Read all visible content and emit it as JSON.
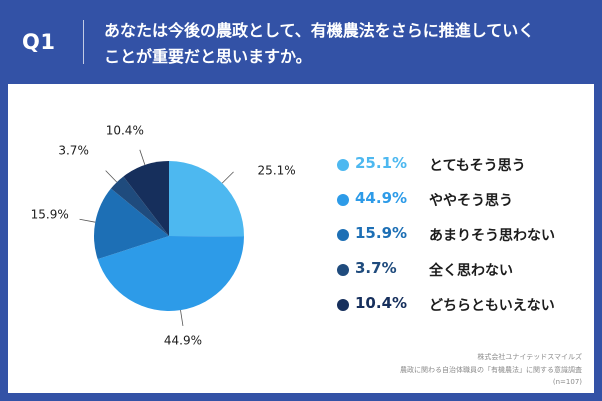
{
  "header": {
    "q_label": "Q1",
    "question_line1": "あなたは今後の農政として、有機農法をさらに推進していく",
    "question_line2": "ことが重要だと思いますか。"
  },
  "chart_data": {
    "type": "pie",
    "title": "",
    "slices": [
      {
        "label": "とてもそう思う",
        "value": 25.1,
        "display": "25.1%",
        "color": "#4db8f0"
      },
      {
        "label": "ややそう思う",
        "value": 44.9,
        "display": "44.9%",
        "color": "#2d9be8"
      },
      {
        "label": "あまりそう思わない",
        "value": 15.9,
        "display": "15.9%",
        "color": "#1d6fb5"
      },
      {
        "label": "全く思わない",
        "value": 3.7,
        "display": "3.7%",
        "color": "#1f4b7d"
      },
      {
        "label": "どちらともいえない",
        "value": 10.4,
        "display": "10.4%",
        "color": "#162f5c"
      }
    ],
    "legend_position": "right"
  },
  "footnote": {
    "line1": "株式会社ユナイテッドスマイルズ",
    "line2": "農政に関わる自治体職員の「有機農法」に関する意識調査",
    "line3": "(n=107)"
  }
}
